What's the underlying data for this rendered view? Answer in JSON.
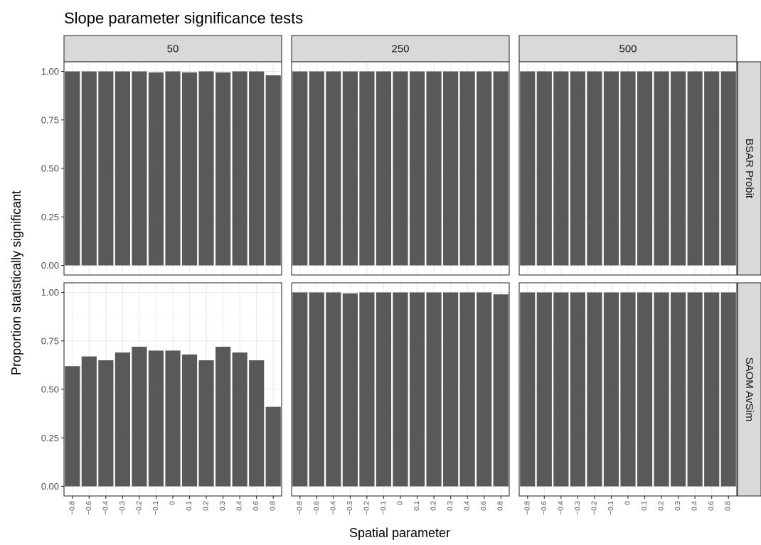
{
  "chart_data": {
    "type": "bar",
    "title": "Slope parameter significance tests",
    "xlabel": "Spatial parameter",
    "ylabel": "Proportion statistically significant",
    "ylim": [
      0,
      1
    ],
    "y_ticks": [
      "0.00",
      "0.25",
      "0.50",
      "0.75",
      "1.00"
    ],
    "categories": [
      "-0.8",
      "-0.6",
      "-0.4",
      "-0.3",
      "-0.2",
      "-0.1",
      "0",
      "0.1",
      "0.2",
      "0.3",
      "0.4",
      "0.6",
      "0.8"
    ],
    "column_facets": [
      "50",
      "250",
      "500"
    ],
    "row_facets": [
      "BSAR Probit",
      "SAOM AvSim"
    ],
    "bar_color": "#595959",
    "grid": true,
    "panels": [
      {
        "row": "BSAR Probit",
        "col": "50",
        "values": [
          1.0,
          1.0,
          1.0,
          1.0,
          1.0,
          0.995,
          1.0,
          0.995,
          1.0,
          0.995,
          1.0,
          1.0,
          0.98
        ]
      },
      {
        "row": "BSAR Probit",
        "col": "250",
        "values": [
          1.0,
          1.0,
          1.0,
          1.0,
          1.0,
          1.0,
          1.0,
          1.0,
          1.0,
          1.0,
          1.0,
          1.0,
          1.0
        ]
      },
      {
        "row": "BSAR Probit",
        "col": "500",
        "values": [
          1.0,
          1.0,
          1.0,
          1.0,
          1.0,
          1.0,
          1.0,
          1.0,
          1.0,
          1.0,
          1.0,
          1.0,
          1.0
        ]
      },
      {
        "row": "SAOM AvSim",
        "col": "50",
        "values": [
          0.62,
          0.67,
          0.65,
          0.69,
          0.72,
          0.7,
          0.7,
          0.68,
          0.65,
          0.72,
          0.69,
          0.65,
          0.41
        ]
      },
      {
        "row": "SAOM AvSim",
        "col": "250",
        "values": [
          1.0,
          1.0,
          1.0,
          0.995,
          1.0,
          1.0,
          1.0,
          1.0,
          1.0,
          1.0,
          1.0,
          1.0,
          0.99
        ]
      },
      {
        "row": "SAOM AvSim",
        "col": "500",
        "values": [
          1.0,
          1.0,
          1.0,
          1.0,
          1.0,
          1.0,
          1.0,
          1.0,
          1.0,
          1.0,
          1.0,
          1.0,
          1.0
        ]
      }
    ]
  }
}
